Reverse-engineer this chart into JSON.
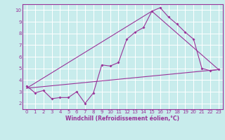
{
  "title": "",
  "xlabel": "Windchill (Refroidissement éolien,°C)",
  "ylabel": "",
  "bg_color": "#c8ecec",
  "line_color": "#993399",
  "grid_color": "#ffffff",
  "xlim": [
    -0.5,
    23.5
  ],
  "ylim": [
    1.5,
    10.5
  ],
  "xticks": [
    0,
    1,
    2,
    3,
    4,
    5,
    6,
    7,
    8,
    9,
    10,
    11,
    12,
    13,
    14,
    15,
    16,
    17,
    18,
    19,
    20,
    21,
    22,
    23
  ],
  "yticks": [
    2,
    3,
    4,
    5,
    6,
    7,
    8,
    9,
    10
  ],
  "series1_x": [
    0,
    1,
    2,
    3,
    4,
    5,
    6,
    7,
    8,
    9,
    10,
    11,
    12,
    13,
    14,
    15,
    16,
    17,
    18,
    19,
    20,
    21,
    22,
    23
  ],
  "series1_y": [
    3.5,
    2.9,
    3.1,
    2.4,
    2.5,
    2.5,
    3.0,
    2.0,
    2.9,
    5.3,
    5.2,
    5.5,
    7.5,
    8.1,
    8.5,
    9.9,
    10.2,
    9.4,
    8.8,
    8.1,
    7.5,
    5.0,
    4.8,
    4.9
  ],
  "series2_x": [
    0,
    23
  ],
  "series2_y": [
    3.3,
    4.9
  ],
  "series3_x": [
    0,
    15,
    23
  ],
  "series3_y": [
    3.3,
    9.9,
    4.9
  ],
  "tick_fontsize": 5.0,
  "xlabel_fontsize": 5.5
}
